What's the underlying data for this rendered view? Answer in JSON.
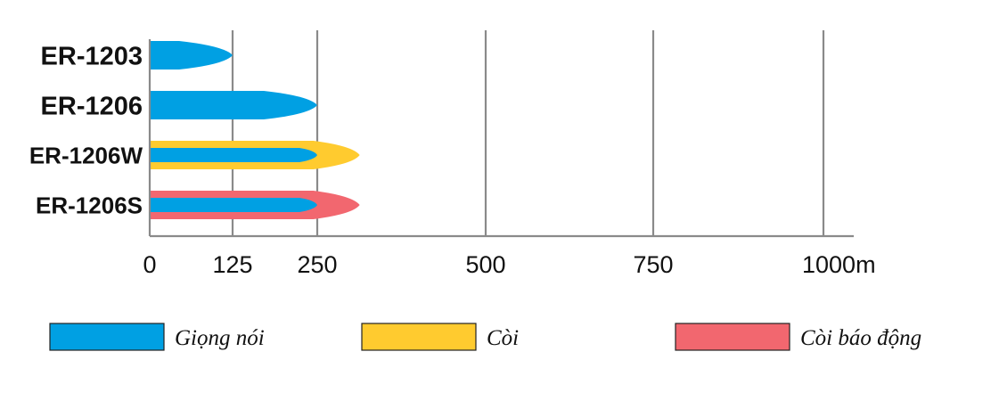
{
  "chart_data": {
    "type": "bar",
    "orientation": "horizontal",
    "categories": [
      "ER-1203",
      "ER-1206",
      "ER-1206W",
      "ER-1206S"
    ],
    "series": [
      {
        "name": "Giọng nói",
        "color": "#00A0E3",
        "values": [
          125,
          250,
          250,
          250
        ]
      },
      {
        "name": "Còi",
        "color": "#FFCB2F",
        "values": [
          null,
          null,
          313,
          null
        ]
      },
      {
        "name": "Còi báo động",
        "color": "#F2676F",
        "values": [
          null,
          null,
          null,
          313
        ]
      }
    ],
    "x_ticks": [
      {
        "value": 0,
        "label": "0"
      },
      {
        "value": 125,
        "label": "125"
      },
      {
        "value": 250,
        "label": "250"
      },
      {
        "value": 500,
        "label": "500"
      },
      {
        "value": 750,
        "label": "750"
      },
      {
        "value": 1000,
        "label": "1000m"
      }
    ],
    "xlim": [
      0,
      1000
    ],
    "title": "",
    "xlabel": "",
    "ylabel": "",
    "grid": "vertical",
    "legend_position": "bottom"
  }
}
